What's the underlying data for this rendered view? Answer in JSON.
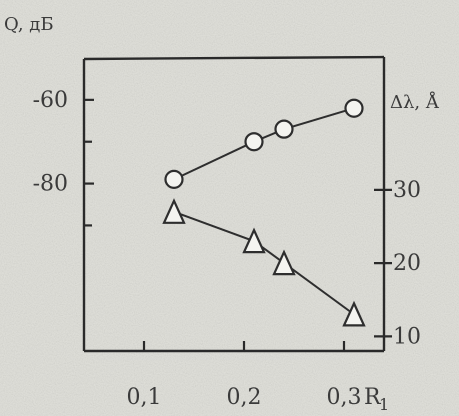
{
  "chart_data": {
    "type": "scatter",
    "title": "",
    "x_axis": {
      "label": "R",
      "label_subscript": "1",
      "ticks": [
        0.1,
        0.2,
        0.3
      ],
      "tick_labels": [
        "0,1",
        "0,2",
        "0,3"
      ],
      "range": [
        0.04,
        0.34
      ]
    },
    "y_left": {
      "label": "Q, дБ",
      "ticks": [
        -60,
        -80
      ],
      "tick_labels": [
        "-60",
        "-80"
      ],
      "range": [
        -120,
        -50
      ]
    },
    "y_right": {
      "label": "Δλ, Å",
      "ticks": [
        30,
        20,
        10
      ],
      "tick_labels": [
        "30",
        "20",
        "10"
      ],
      "range": [
        8,
        48
      ]
    },
    "series": [
      {
        "axis": "left",
        "marker": "circle",
        "x": [
          0.13,
          0.21,
          0.24,
          0.31
        ],
        "y": [
          -79,
          -70,
          -67,
          -62
        ]
      },
      {
        "axis": "right",
        "marker": "triangle",
        "x": [
          0.13,
          0.21,
          0.24,
          0.31
        ],
        "y": [
          27,
          23,
          20,
          13
        ]
      }
    ],
    "grid": false,
    "legend": "none"
  }
}
